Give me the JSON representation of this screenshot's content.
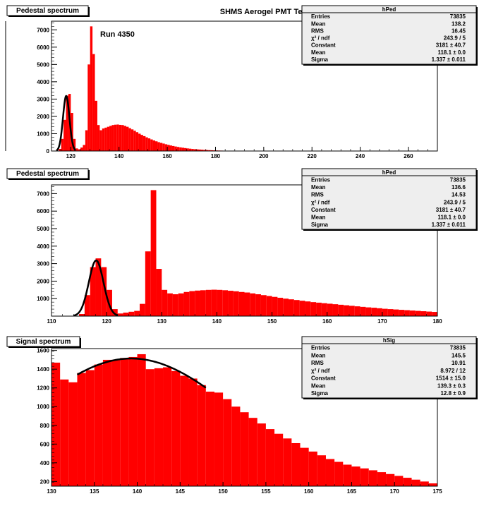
{
  "canvas_title": "SHMS Aerogel PMT Test",
  "colors": {
    "histogram_fill": "#ff0000",
    "fit_line": "#000000",
    "stats_box_bg": "#eeeeee",
    "background": "#ffffff"
  },
  "chart_data": [
    {
      "type": "bar",
      "title": "Pedestal spectrum",
      "annotation": "Run  4350",
      "xlim": [
        112,
        272
      ],
      "ylim": [
        0,
        7500
      ],
      "x_ticks": [
        120,
        140,
        160,
        180,
        200,
        220,
        240,
        260
      ],
      "y_ticks": [
        0,
        1000,
        2000,
        3000,
        4000,
        5000,
        6000,
        7000
      ],
      "bin_width": 1,
      "x": [
        114,
        115,
        116,
        117,
        118,
        119,
        120,
        121,
        122,
        123,
        124,
        125,
        126,
        127,
        128,
        129,
        130,
        131,
        132,
        133,
        134,
        135,
        136,
        137,
        138,
        139,
        140,
        141,
        142,
        143,
        144,
        145,
        146,
        147,
        148,
        149,
        150,
        151,
        152,
        153,
        154,
        155,
        156,
        157,
        158,
        159,
        160,
        161,
        162,
        163,
        164,
        165,
        166,
        167,
        168,
        169,
        170,
        171,
        172,
        173,
        174,
        175,
        176,
        177,
        178,
        179,
        180,
        181,
        182,
        183,
        184,
        185,
        186,
        187,
        188,
        189,
        190,
        191,
        192,
        193,
        194,
        195,
        196,
        197,
        198,
        199,
        200
      ],
      "values": [
        20,
        120,
        700,
        1800,
        3200,
        3300,
        2200,
        700,
        150,
        100,
        200,
        350,
        1200,
        5000,
        7200,
        5600,
        2900,
        1500,
        1200,
        1300,
        1350,
        1400,
        1450,
        1500,
        1520,
        1530,
        1510,
        1500,
        1450,
        1400,
        1320,
        1250,
        1170,
        1090,
        1000,
        930,
        860,
        790,
        730,
        670,
        610,
        560,
        510,
        470,
        430,
        390,
        355,
        320,
        290,
        260,
        235,
        210,
        190,
        170,
        150,
        135,
        120,
        105,
        95,
        85,
        75,
        65,
        57,
        50,
        44,
        38,
        33,
        28,
        24,
        20,
        17,
        14,
        12,
        10,
        8,
        7,
        6,
        5,
        4,
        3,
        3,
        2,
        2,
        1,
        1,
        1,
        1
      ],
      "fit": {
        "constant": 3181,
        "mean": 118.1,
        "sigma": 1.337,
        "range": [
          114,
          122
        ]
      },
      "stats": {
        "name": "hPed",
        "rows": [
          {
            "label": "Entries",
            "value": "73835"
          },
          {
            "label": "Mean",
            "value": "138.2"
          },
          {
            "label": "RMS",
            "value": "16.45"
          },
          {
            "label": "χ² / ndf",
            "value": "243.9 / 5"
          },
          {
            "label": "Constant",
            "value": "3181 ± 40.7"
          },
          {
            "label": "Mean",
            "value": "118.1 ± 0.0"
          },
          {
            "label": "Sigma",
            "value": "1.337 ± 0.011"
          }
        ]
      }
    },
    {
      "type": "bar",
      "title": "Pedestal spectrum",
      "xlim": [
        110,
        180
      ],
      "ylim": [
        0,
        7500
      ],
      "x_ticks": [
        110,
        120,
        130,
        140,
        150,
        160,
        170,
        180
      ],
      "y_ticks": [
        1000,
        2000,
        3000,
        4000,
        5000,
        6000,
        7000
      ],
      "bin_width": 1,
      "x": [
        114,
        115,
        116,
        117,
        118,
        119,
        120,
        121,
        122,
        123,
        124,
        125,
        126,
        127,
        128,
        129,
        130,
        131,
        132,
        133,
        134,
        135,
        136,
        137,
        138,
        139,
        140,
        141,
        142,
        143,
        144,
        145,
        146,
        147,
        148,
        149,
        150,
        151,
        152,
        153,
        154,
        155,
        156,
        157,
        158,
        159,
        160,
        161,
        162,
        163,
        164,
        165,
        166,
        167,
        168,
        169,
        170,
        171,
        172,
        173,
        174,
        175,
        176,
        177,
        178,
        179
      ],
      "values": [
        20,
        120,
        1200,
        2800,
        3300,
        2800,
        1500,
        400,
        150,
        200,
        250,
        300,
        700,
        3700,
        7200,
        2700,
        1500,
        1300,
        1250,
        1300,
        1380,
        1430,
        1460,
        1480,
        1500,
        1510,
        1500,
        1480,
        1450,
        1420,
        1380,
        1350,
        1300,
        1250,
        1200,
        1150,
        1100,
        1050,
        1000,
        960,
        920,
        880,
        840,
        800,
        770,
        740,
        710,
        680,
        650,
        620,
        590,
        560,
        530,
        500,
        480,
        450,
        420,
        400,
        380,
        360,
        340,
        320,
        300,
        280,
        260,
        240
      ],
      "fit": {
        "constant": 3181,
        "mean": 118.1,
        "sigma": 1.337,
        "range": [
          114,
          122
        ]
      },
      "stats": {
        "name": "hPed",
        "rows": [
          {
            "label": "Entries",
            "value": "73835"
          },
          {
            "label": "Mean",
            "value": "136.6"
          },
          {
            "label": "RMS",
            "value": "14.53"
          },
          {
            "label": "χ² / ndf",
            "value": "243.9 / 5"
          },
          {
            "label": "Constant",
            "value": "3181 ± 40.7"
          },
          {
            "label": "Mean",
            "value": "118.1 ± 0.0"
          },
          {
            "label": "Sigma",
            "value": "1.337 ± 0.011"
          }
        ]
      }
    },
    {
      "type": "bar",
      "title": "Signal spectrum",
      "xlim": [
        130,
        175
      ],
      "ylim": [
        150,
        1620
      ],
      "x_ticks": [
        130,
        135,
        140,
        145,
        150,
        155,
        160,
        165,
        170,
        175
      ],
      "y_ticks": [
        200,
        400,
        600,
        800,
        1000,
        1200,
        1400,
        1600
      ],
      "bin_width": 1,
      "x": [
        130,
        131,
        132,
        133,
        134,
        135,
        136,
        137,
        138,
        139,
        140,
        141,
        142,
        143,
        144,
        145,
        146,
        147,
        148,
        149,
        150,
        151,
        152,
        153,
        154,
        155,
        156,
        157,
        158,
        159,
        160,
        161,
        162,
        163,
        164,
        165,
        166,
        167,
        168,
        169,
        170,
        171,
        172,
        173,
        174
      ],
      "values": [
        1470,
        1290,
        1260,
        1360,
        1390,
        1450,
        1500,
        1500,
        1520,
        1530,
        1560,
        1400,
        1410,
        1420,
        1380,
        1330,
        1300,
        1230,
        1160,
        1150,
        1080,
        1000,
        940,
        880,
        820,
        760,
        710,
        660,
        610,
        560,
        520,
        480,
        440,
        410,
        380,
        360,
        340,
        320,
        300,
        280,
        260,
        240,
        220,
        200,
        180
      ],
      "fit": {
        "type": "gaussian",
        "constant": 1514,
        "mean": 139.3,
        "sigma": 12.8,
        "range": [
          133,
          148
        ]
      },
      "stats": {
        "name": "hSig",
        "rows": [
          {
            "label": "Entries",
            "value": "73835"
          },
          {
            "label": "Mean",
            "value": "145.5"
          },
          {
            "label": "RMS",
            "value": "10.91"
          },
          {
            "label": "χ² / ndf",
            "value": "8.972 / 12"
          },
          {
            "label": "Constant",
            "value": "1514 ± 15.0"
          },
          {
            "label": "Mean",
            "value": "139.3 ± 0.3"
          },
          {
            "label": "Sigma",
            "value": "12.8 ± 0.9"
          }
        ]
      }
    }
  ]
}
